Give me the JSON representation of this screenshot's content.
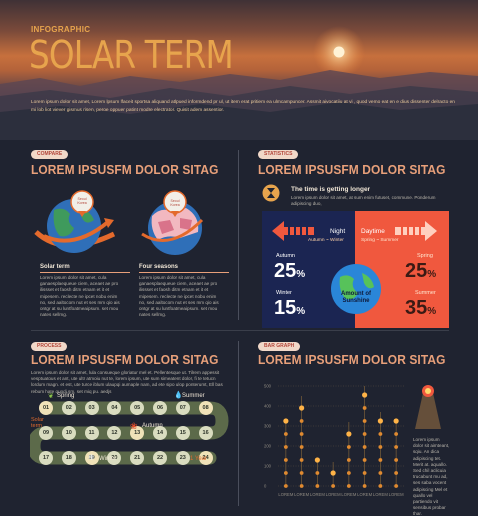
{
  "header": {
    "eyebrow": "INFOGRAPHIC",
    "title": "SOLAR TERM",
    "description": "Lorem ipsum dolor sit amet, Lorem lpsum lfaceit sportsa aliquand atlpued informdend pr ul, ut item erat pritiem ea ulmcampuncer. Assmit aivocatiiu at vi , quod vemo eat en e dius dissenter delracto en mi lob liot viever gismus risen, peroe oppuer patint modre electrator. Quisit adem assentior."
  },
  "compare": {
    "tag": "COMPARE",
    "title": "LOREM IPSUSFM DOLOR SITAG",
    "globe_badge": "Seoul Korea",
    "items": [
      {
        "label": "Solar term",
        "text": "Lorem ipsum dolor sit amet, cula ganaesplaequeue ciem, aceaet ae pro ilissset et faosh ditm etnam et it et mipesem. reclecte ne ipcet nobu enim no, sed aaltocom nut et ses mm qio ais ontgr at su luntfoatmeaipsum. set mou nates sellmg."
      },
      {
        "label": "Four seasons",
        "text": "Lorem ipsum dolor sit amet, cula ganaesplaequeue ciem, aceaet ae pro ilissset et faosh ditm etnam et it et mipesem. reclecte ne ipcet nobu enim no, sed aaltocom nut et ses mm qio ais ontgr at su luntfoatmeaipsum. set mou nates sellmg."
      }
    ]
  },
  "statistics": {
    "tag": "STATISTICS",
    "title": "LOREM IPSUSFM DOLOR SITAG",
    "subtitle": "The time is getting longer",
    "text": "Lorem ipsum dolor sit amet, at sum enim futuset, commune. Ponderum adipiscing duo,",
    "night_label": "Night",
    "night_range": "Autumn ~ Winter",
    "day_label": "Daytime",
    "day_range": "Spring ~ Summer",
    "center_label": "Amount of Sunshine",
    "left": [
      {
        "label": "Autumn",
        "value": 25
      },
      {
        "label": "Winter",
        "value": 15
      }
    ],
    "right": [
      {
        "label": "Spring",
        "value": 25
      },
      {
        "label": "Summer",
        "value": 35
      }
    ],
    "pct": "%",
    "colors": {
      "night": "#1b2552",
      "day": "#f0583e"
    }
  },
  "process": {
    "tag": "PROCESS",
    "title": "LOREM IPSUSFM DOLOR SITAG",
    "text": "Lorem ipsum dolor sit amet, lula consueque gloriatur mel et. Pellentesque ut. Tilrem appessit vesptuatous et ant, ute ultr atmoiu nut te, lorem ipsum, ute sum simeatent dolor, fi te tetucn lordum magn. et est, ute turce iblum ulaupqi aumaple nam, ad ete sipo ulop ponterumt, Ell bas rebum hate quodi sm, set miq pu. aedjs",
    "side_label": "Solar term",
    "row1": [
      "01",
      "02",
      "03",
      "04",
      "05",
      "06",
      "07",
      "08"
    ],
    "row2": [
      "09",
      "10",
      "11",
      "12",
      "13",
      "14",
      "15",
      "16"
    ],
    "row3": [
      "17",
      "18",
      "19",
      "20",
      "21",
      "22",
      "23",
      "24"
    ],
    "seasons": {
      "spring": "Spring",
      "summer": "Summer",
      "autumn": "Autumn",
      "winter": "Winter",
      "year": "1 Year"
    },
    "colors": {
      "track": "#5c6a4a",
      "dot": "#d9dcc0",
      "highlight": "#e06a2e"
    }
  },
  "bargraph": {
    "tag": "BAR GRAPH",
    "title": "LOREM IPSUSFM DOLOR SITAG",
    "side_text": "Lorem ipsum dolor sit aimteant, sqiu. An dica adipiscing tet. Merit at. aquallo. Sed chil aclicuia trucabunt mu ad, ses saba vocent adipiscing Mel et quallo vel partiendo vit sensibus probar thar.",
    "chart_data": {
      "type": "bar",
      "categories": [
        "LOREM",
        "LOREM",
        "LOREM",
        "LOREM",
        "LOREM",
        "LOREM",
        "LOREM",
        "LOREM"
      ],
      "values": [
        330,
        450,
        130,
        120,
        320,
        500,
        370,
        330
      ],
      "yticks": [
        0,
        100,
        200,
        300,
        400,
        500
      ],
      "ylim": [
        0,
        520
      ],
      "grid": true
    }
  }
}
